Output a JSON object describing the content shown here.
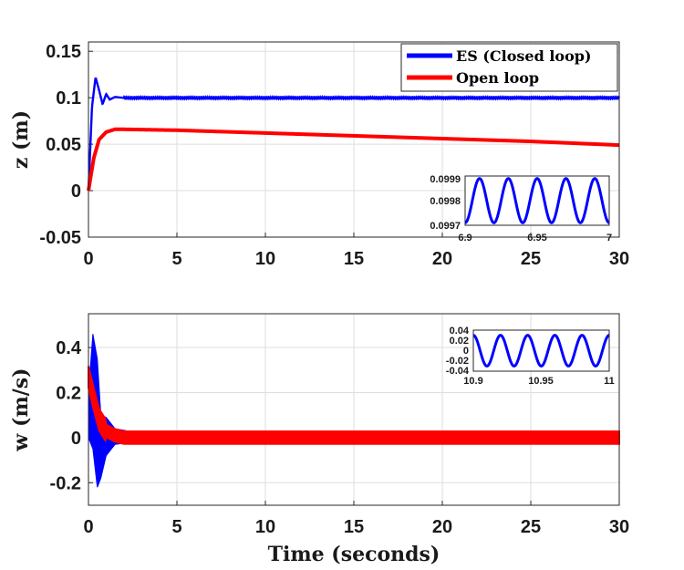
{
  "chart_data": [
    {
      "type": "line",
      "ylabel": "z (m)",
      "xlabel": "",
      "xlim": [
        0,
        30
      ],
      "ylim": [
        -0.05,
        0.16
      ],
      "xticks": [
        "0",
        "5",
        "10",
        "15",
        "20",
        "25",
        "30"
      ],
      "yticks": [
        "-0.05",
        "0",
        "0.05",
        "0.1",
        "0.15"
      ],
      "grid": true,
      "legend": {
        "placement": "top-right",
        "entries": [
          "ES (Closed loop)",
          "Open loop"
        ]
      },
      "series": [
        {
          "name": "ES (Closed loop)",
          "color": "#0000ff",
          "description": "overshoot to ~0.122 at t~0.4s, settles at ~0.0998 with tiny oscillation",
          "x": [
            0,
            0.2,
            0.4,
            0.6,
            0.8,
            1.0,
            1.2,
            1.5,
            2,
            3,
            30
          ],
          "y": [
            0,
            0.09,
            0.122,
            0.108,
            0.093,
            0.104,
            0.098,
            0.1008,
            0.0998,
            0.0998,
            0.0998
          ]
        },
        {
          "name": "Open loop",
          "color": "#ff0000",
          "x": [
            0,
            0.3,
            0.6,
            1.0,
            1.5,
            2,
            5,
            10,
            15,
            20,
            25,
            30
          ],
          "y": [
            0,
            0.035,
            0.055,
            0.063,
            0.066,
            0.066,
            0.065,
            0.062,
            0.059,
            0.056,
            0.053,
            0.049
          ]
        }
      ],
      "inset": {
        "xlim": [
          6.9,
          7.0
        ],
        "ylim": [
          0.0997,
          0.0999
        ],
        "xticks": [
          "6.9",
          "6.95",
          "7"
        ],
        "yticks": [
          "0.0997",
          "0.0998",
          "0.0999"
        ],
        "series": {
          "name": "ES (Closed loop)",
          "center": 0.0998,
          "amplitude": 9e-05,
          "cycles": 5,
          "phase_start": "trough"
        }
      }
    },
    {
      "type": "line",
      "ylabel": "w (m/s)",
      "xlabel": "Time (seconds)",
      "xlim": [
        0,
        30
      ],
      "ylim": [
        -0.3,
        0.55
      ],
      "xticks": [
        "0",
        "5",
        "10",
        "15",
        "20",
        "25",
        "30"
      ],
      "yticks": [
        "-0.2",
        "0",
        "0.2",
        "0.4"
      ],
      "grid": true,
      "series": [
        {
          "name": "ES (Closed loop)",
          "color": "#0000ff",
          "description": "large damped oscillation from ~0.46 peak to ~-0.22, then near zero with small band",
          "x": [
            0,
            0.25,
            0.5,
            0.7,
            1.0,
            1.5,
            2.5,
            30
          ],
          "peak_hi": [
            0.2,
            0.46,
            0.35,
            0.1,
            0.09,
            0.04,
            0.025,
            0.025
          ],
          "peak_lo": [
            0.0,
            -0.05,
            -0.22,
            -0.18,
            -0.08,
            -0.03,
            -0.02,
            -0.02
          ]
        },
        {
          "name": "Open loop",
          "color": "#ff0000",
          "description": "starts ~0.27, decays to ~0, thick band +/-0.025 to 30s",
          "x": [
            0,
            0.3,
            0.6,
            1.0,
            1.5,
            2,
            30
          ],
          "y_center": [
            0.27,
            0.17,
            0.08,
            0.03,
            0.01,
            0.0,
            0.0
          ],
          "band": 0.028
        }
      ],
      "inset": {
        "xlim": [
          10.9,
          11.0
        ],
        "ylim": [
          -0.04,
          0.04
        ],
        "xticks": [
          "10.9",
          "10.95",
          "11"
        ],
        "yticks": [
          "0.04",
          "0.02",
          "0",
          "-0.02",
          "-0.04"
        ],
        "series": {
          "name": "ES (Closed loop)",
          "center": 0.0,
          "amplitude": 0.03,
          "cycles": 5,
          "phase_start": "peak"
        }
      }
    }
  ]
}
